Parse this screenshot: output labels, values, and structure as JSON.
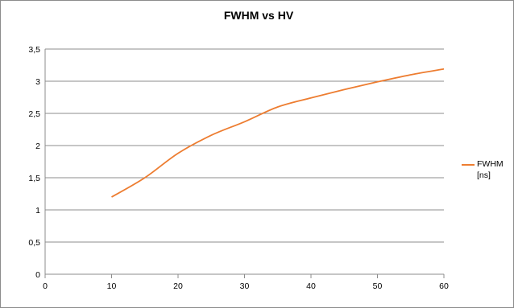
{
  "chart_data": {
    "type": "line",
    "title": "FWHM vs HV",
    "xlabel": "",
    "ylabel": "",
    "xlim": [
      0,
      60
    ],
    "ylim": [
      0,
      3.5
    ],
    "x_ticks": [
      "0",
      "10",
      "20",
      "30",
      "40",
      "50",
      "60"
    ],
    "y_ticks": [
      "0",
      "0,5",
      "1",
      "1,5",
      "2",
      "2,5",
      "3",
      "3,5"
    ],
    "grid": "horizontal",
    "legend_position": "right",
    "series": [
      {
        "name": "FWHM [ns]",
        "color": "#ed7d31",
        "x": [
          10,
          15,
          20,
          25,
          30,
          35,
          40,
          45,
          50,
          55,
          60
        ],
        "y": [
          1.2,
          1.5,
          1.88,
          2.16,
          2.37,
          2.6,
          2.74,
          2.87,
          2.99,
          3.1,
          3.19
        ]
      }
    ]
  }
}
